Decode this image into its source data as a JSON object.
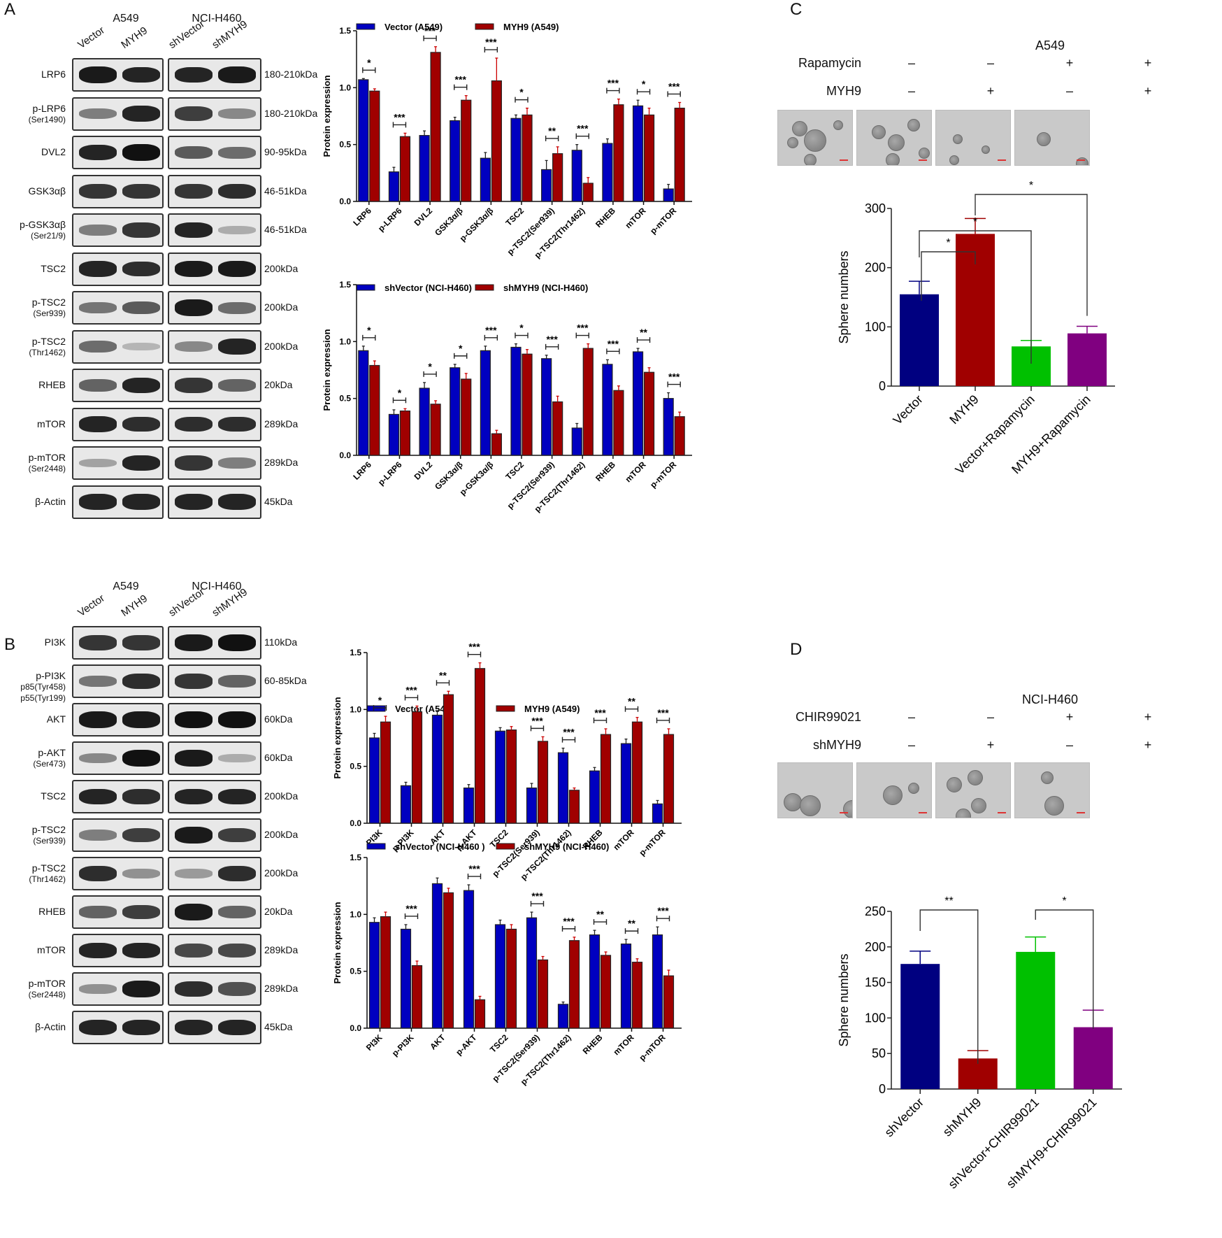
{
  "panels": {
    "A": {
      "letter": "A",
      "blot": {
        "cell_lines": [
          "A549",
          "NCI-H460"
        ],
        "lanes": [
          "Vector",
          "MYH9",
          "shVector",
          "shMYH9"
        ],
        "rows": [
          {
            "label": "LRP6",
            "sub": "",
            "kda": "180-210kDa",
            "intensity": [
              0.95,
              0.9,
              0.9,
              0.95
            ]
          },
          {
            "label": "p-LRP6",
            "sub": "(Ser1490)",
            "kda": "180-210kDa",
            "intensity": [
              0.4,
              0.9,
              0.75,
              0.35
            ]
          },
          {
            "label": "DVL2",
            "sub": "",
            "kda": "90-95kDa",
            "intensity": [
              0.9,
              1.0,
              0.6,
              0.5
            ]
          },
          {
            "label": "GSK3αβ",
            "sub": "",
            "kda": "46-51kDa",
            "intensity": [
              0.8,
              0.8,
              0.8,
              0.85
            ]
          },
          {
            "label": "p-GSK3αβ",
            "sub": "(Ser21/9)",
            "kda": "46-51kDa",
            "intensity": [
              0.4,
              0.8,
              0.9,
              0.15
            ]
          },
          {
            "label": "TSC2",
            "sub": "",
            "kda": "200kDa",
            "intensity": [
              0.9,
              0.85,
              0.95,
              0.95
            ]
          },
          {
            "label": "p-TSC2",
            "sub": "(Ser939)",
            "kda": "200kDa",
            "intensity": [
              0.45,
              0.6,
              0.95,
              0.5
            ]
          },
          {
            "label": "p-TSC2",
            "sub": "(Thr1462)",
            "kda": "200kDa",
            "intensity": [
              0.5,
              0.1,
              0.35,
              0.9
            ]
          },
          {
            "label": "RHEB",
            "sub": "",
            "kda": "20kDa",
            "intensity": [
              0.55,
              0.9,
              0.8,
              0.55
            ]
          },
          {
            "label": "mTOR",
            "sub": "",
            "kda": "289kDa",
            "intensity": [
              0.9,
              0.85,
              0.85,
              0.85
            ]
          },
          {
            "label": "p-mTOR",
            "sub": "(Ser2448)",
            "kda": "289kDa",
            "intensity": [
              0.2,
              0.9,
              0.8,
              0.4
            ]
          },
          {
            "label": "β-Actin",
            "sub": "",
            "kda": "45kDa",
            "intensity": [
              0.9,
              0.9,
              0.9,
              0.9
            ]
          }
        ]
      }
    },
    "B": {
      "letter": "B",
      "blot": {
        "cell_lines": [
          "A549",
          "NCI-H460"
        ],
        "lanes": [
          "Vector",
          "MYH9",
          "shVector",
          "shMYH9"
        ],
        "rows": [
          {
            "label": "PI3K",
            "sub": "",
            "kda": "110kDa",
            "intensity": [
              0.8,
              0.8,
              0.95,
              1.0
            ]
          },
          {
            "label": "p-PI3K",
            "sub": "p85(Tyr458)\np55(Tyr199)",
            "kda": "60-85kDa",
            "intensity": [
              0.45,
              0.85,
              0.8,
              0.55
            ]
          },
          {
            "label": "AKT",
            "sub": "",
            "kda": "60kDa",
            "intensity": [
              0.95,
              0.95,
              1.0,
              1.0
            ]
          },
          {
            "label": "p-AKT",
            "sub": "(Ser473)",
            "kda": "60kDa",
            "intensity": [
              0.35,
              1.0,
              0.95,
              0.15
            ]
          },
          {
            "label": "TSC2",
            "sub": "",
            "kda": "200kDa",
            "intensity": [
              0.9,
              0.85,
              0.9,
              0.9
            ]
          },
          {
            "label": "p-TSC2",
            "sub": "(Ser939)",
            "kda": "200kDa",
            "intensity": [
              0.4,
              0.75,
              0.95,
              0.75
            ]
          },
          {
            "label": "p-TSC2",
            "sub": "(Thr1462)",
            "kda": "200kDa",
            "intensity": [
              0.85,
              0.3,
              0.25,
              0.85
            ]
          },
          {
            "label": "RHEB",
            "sub": "",
            "kda": "20kDa",
            "intensity": [
              0.55,
              0.75,
              0.95,
              0.55
            ]
          },
          {
            "label": "mTOR",
            "sub": "",
            "kda": "289kDa",
            "intensity": [
              0.9,
              0.9,
              0.7,
              0.7
            ]
          },
          {
            "label": "p-mTOR",
            "sub": "(Ser2448)",
            "kda": "289kDa",
            "intensity": [
              0.3,
              0.95,
              0.85,
              0.65
            ]
          },
          {
            "label": "β-Actin",
            "sub": "",
            "kda": "45kDa",
            "intensity": [
              0.9,
              0.9,
              0.9,
              0.9
            ]
          }
        ]
      }
    },
    "C": {
      "letter": "C",
      "cell_line": "A549",
      "treatments": [
        {
          "label": "Rapamycin",
          "signs": [
            "–",
            "–",
            "+",
            "+"
          ]
        },
        {
          "label": "MYH9",
          "signs": [
            "–",
            "+",
            "–",
            "+"
          ]
        }
      ]
    },
    "D": {
      "letter": "D",
      "cell_line": "NCI-H460",
      "treatments": [
        {
          "label": "CHIR99021",
          "signs": [
            "–",
            "–",
            "+",
            "+"
          ]
        },
        {
          "label": "shMYH9",
          "signs": [
            "–",
            "+",
            "–",
            "+"
          ]
        }
      ]
    }
  },
  "colors": {
    "blue": "#0000c0",
    "red": "#a00000",
    "navy": "#000080",
    "dark_red": "#a00000",
    "green": "#00c000",
    "purple": "#800080"
  },
  "chart_data": [
    {
      "id": "A-top",
      "type": "bar",
      "title": "",
      "xlabel": "",
      "ylabel": "Protein expression",
      "ylim": [
        0,
        1.5
      ],
      "yticks": [
        "0.0",
        "0.5",
        "1.0",
        "1.5"
      ],
      "grid": false,
      "legend_position": "top",
      "categories": [
        "LRP6",
        "p-LRP6",
        "DVL2",
        "GSK3α/β",
        "p-GSK3α/β",
        "TSC2",
        "p-TSC2(Ser939)",
        "p-TSC2(Thr1462)",
        "RHEB",
        "mTOR",
        "p-mTOR"
      ],
      "series": [
        {
          "name": "Vector (A549)",
          "color": "#0000c0",
          "values": [
            1.07,
            0.26,
            0.58,
            0.71,
            0.38,
            0.73,
            0.28,
            0.45,
            0.51,
            0.84,
            0.11
          ],
          "errors": [
            0.01,
            0.04,
            0.04,
            0.03,
            0.05,
            0.03,
            0.08,
            0.05,
            0.04,
            0.05,
            0.04
          ]
        },
        {
          "name": "MYH9  (A549)",
          "color": "#a00000",
          "values": [
            0.97,
            0.57,
            1.31,
            0.89,
            1.06,
            0.76,
            0.42,
            0.16,
            0.85,
            0.76,
            0.82
          ],
          "errors": [
            0.02,
            0.03,
            0.05,
            0.04,
            0.2,
            0.06,
            0.06,
            0.05,
            0.05,
            0.06,
            0.05
          ]
        }
      ],
      "significance": [
        "*",
        "***",
        "***",
        "***",
        "***",
        "*",
        "**",
        "***",
        "***",
        "*",
        "***"
      ]
    },
    {
      "id": "A-bottom",
      "type": "bar",
      "title": "",
      "xlabel": "",
      "ylabel": "Protein expression",
      "ylim": [
        0,
        1.5
      ],
      "yticks": [
        "0.0",
        "0.5",
        "1.0",
        "1.5"
      ],
      "grid": false,
      "legend_position": "top",
      "categories": [
        "LRP6",
        "p-LRP6",
        "DVL2",
        "GSK3α/β",
        "p-GSK3α/β",
        "TSC2",
        "p-TSC2(Ser939)",
        "p-TSC2(Thr1462)",
        "RHEB",
        "mTOR",
        "p-mTOR"
      ],
      "series": [
        {
          "name": "shVector (NCI-H460)",
          "color": "#0000c0",
          "values": [
            0.92,
            0.36,
            0.59,
            0.77,
            0.92,
            0.95,
            0.85,
            0.24,
            0.8,
            0.91,
            0.5
          ],
          "errors": [
            0.04,
            0.04,
            0.05,
            0.03,
            0.04,
            0.03,
            0.03,
            0.04,
            0.04,
            0.03,
            0.05
          ]
        },
        {
          "name": "shMYH9 (NCI-H460)",
          "color": "#a00000",
          "values": [
            0.79,
            0.39,
            0.45,
            0.67,
            0.19,
            0.89,
            0.47,
            0.94,
            0.57,
            0.73,
            0.34
          ],
          "errors": [
            0.04,
            0.02,
            0.03,
            0.05,
            0.03,
            0.04,
            0.05,
            0.04,
            0.04,
            0.04,
            0.04
          ]
        }
      ],
      "significance": [
        "*",
        "*",
        "*",
        "*",
        "***",
        "*",
        "***",
        "***",
        "***",
        "**",
        "***"
      ]
    },
    {
      "id": "B-top",
      "type": "bar",
      "title": "",
      "xlabel": "",
      "ylabel": "Protein expression",
      "ylim": [
        0,
        1.5
      ],
      "yticks": [
        "0.0",
        "0.5",
        "1.0",
        "1.5"
      ],
      "grid": false,
      "legend_position": "top",
      "categories": [
        "PI3K",
        "p-PI3K",
        "AKT",
        "p-AKT",
        "TSC2",
        "p-TSC2(Ser939)",
        "p-TSC2(Thr1462)",
        "RHEB",
        "mTOR",
        "p-mTOR"
      ],
      "series": [
        {
          "name": "Vector (A549)",
          "color": "#0000c0",
          "values": [
            0.75,
            0.33,
            0.95,
            0.31,
            0.81,
            0.31,
            0.62,
            0.46,
            0.7,
            0.17
          ],
          "errors": [
            0.04,
            0.03,
            0.04,
            0.03,
            0.03,
            0.04,
            0.04,
            0.03,
            0.04,
            0.03
          ]
        },
        {
          "name": "MYH9  (A549)",
          "color": "#a00000",
          "values": [
            0.89,
            0.98,
            1.13,
            1.36,
            0.82,
            0.72,
            0.29,
            0.78,
            0.89,
            0.78
          ],
          "errors": [
            0.05,
            0.05,
            0.03,
            0.05,
            0.03,
            0.04,
            0.02,
            0.05,
            0.04,
            0.05
          ]
        }
      ],
      "significance": [
        "*",
        "***",
        "**",
        "***",
        "",
        "***",
        "***",
        "***",
        "**",
        "***"
      ]
    },
    {
      "id": "B-bottom",
      "type": "bar",
      "title": "",
      "xlabel": "",
      "ylabel": "Protein expression",
      "ylim": [
        0,
        1.5
      ],
      "yticks": [
        "0.0",
        "0.5",
        "1.0",
        "1.5"
      ],
      "grid": false,
      "legend_position": "top",
      "categories": [
        "PI3K",
        "p-PI3K",
        "AKT",
        "p-AKT",
        "TSC2",
        "p-TSC2(Ser939)",
        "p-TSC2(Thr1462)",
        "RHEB",
        "mTOR",
        "p-mTOR"
      ],
      "series": [
        {
          "name": "shVector (NCI-H460 )",
          "color": "#0000c0",
          "values": [
            0.93,
            0.87,
            1.27,
            1.21,
            0.91,
            0.97,
            0.21,
            0.82,
            0.74,
            0.82
          ],
          "errors": [
            0.04,
            0.04,
            0.05,
            0.05,
            0.04,
            0.05,
            0.02,
            0.04,
            0.04,
            0.07
          ]
        },
        {
          "name": "shMYH9 (NCI-H460)",
          "color": "#a00000",
          "values": [
            0.98,
            0.55,
            1.19,
            0.25,
            0.87,
            0.6,
            0.77,
            0.64,
            0.58,
            0.46
          ],
          "errors": [
            0.04,
            0.04,
            0.04,
            0.03,
            0.04,
            0.03,
            0.03,
            0.03,
            0.03,
            0.05
          ]
        }
      ],
      "significance": [
        "",
        "***",
        "",
        "***",
        "",
        "***",
        "***",
        "**",
        "**",
        "***"
      ]
    },
    {
      "id": "C",
      "type": "bar",
      "title": "",
      "xlabel": "",
      "ylabel": "Sphere numbers",
      "ylim": [
        0,
        300
      ],
      "yticks": [
        "0",
        "100",
        "200",
        "300"
      ],
      "grid": false,
      "categories": [
        "Vector",
        "MYH9",
        "Vector+Rapamycin",
        "MYH9+Rapamycin"
      ],
      "values": [
        155,
        257,
        67,
        89
      ],
      "errors": [
        22,
        26,
        10,
        12
      ],
      "colors": [
        "#000080",
        "#a00000",
        "#00c000",
        "#800080"
      ],
      "comparisons": [
        {
          "from": 0,
          "to": 1,
          "label": "*"
        },
        {
          "from": 0,
          "to": 2,
          "label": "*"
        },
        {
          "from": 1,
          "to": 3,
          "label": "*"
        }
      ]
    },
    {
      "id": "D",
      "type": "bar",
      "title": "",
      "xlabel": "",
      "ylabel": "Sphere numbers",
      "ylim": [
        0,
        250
      ],
      "yticks": [
        "0",
        "50",
        "100",
        "150",
        "200",
        "250"
      ],
      "grid": false,
      "categories": [
        "shVector",
        "shMYH9",
        "shVector+CHIR99021",
        "shMYH9+CHIR99021"
      ],
      "values": [
        176,
        43,
        193,
        87
      ],
      "errors": [
        18,
        11,
        21,
        24
      ],
      "colors": [
        "#000080",
        "#a00000",
        "#00c000",
        "#800080"
      ],
      "comparisons": [
        {
          "from": 0,
          "to": 1,
          "label": "**"
        },
        {
          "from": 2,
          "to": 3,
          "label": "*"
        }
      ]
    }
  ]
}
